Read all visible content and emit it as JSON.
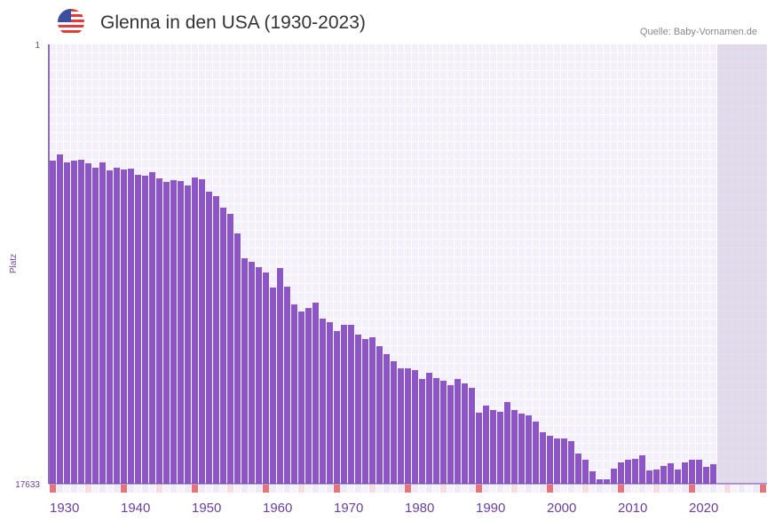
{
  "header": {
    "title": "Glenna in den USA (1930-2023)",
    "source": "Quelle: Baby-Vornamen.de",
    "flag_icon": "us-flag-icon"
  },
  "chart_data": {
    "type": "bar",
    "title": "Glenna in den USA (1930-2023)",
    "xlabel": "",
    "ylabel": "Platz",
    "ylim": [
      1,
      17633
    ],
    "y_inverted": true,
    "y_tick_labels": [
      "1",
      "17633"
    ],
    "x_range": [
      1930,
      2030
    ],
    "x_tick_labels": [
      "1930",
      "1940",
      "1950",
      "1960",
      "1970",
      "1980",
      "1990",
      "2000",
      "2010",
      "2020"
    ],
    "future_shaded_from": 2024,
    "bar_color": "#8e55c7",
    "categories": [
      1930,
      1931,
      1932,
      1933,
      1934,
      1935,
      1936,
      1937,
      1938,
      1939,
      1940,
      1941,
      1942,
      1943,
      1944,
      1945,
      1946,
      1947,
      1948,
      1949,
      1950,
      1951,
      1952,
      1953,
      1954,
      1955,
      1956,
      1957,
      1958,
      1959,
      1960,
      1961,
      1962,
      1963,
      1964,
      1965,
      1966,
      1967,
      1968,
      1969,
      1970,
      1971,
      1972,
      1973,
      1974,
      1975,
      1976,
      1977,
      1978,
      1979,
      1980,
      1981,
      1982,
      1983,
      1984,
      1985,
      1986,
      1987,
      1988,
      1989,
      1990,
      1991,
      1992,
      1993,
      1994,
      1995,
      1996,
      1997,
      1998,
      1999,
      2000,
      2001,
      2002,
      2003,
      2004,
      2005,
      2006,
      2007,
      2008,
      2009,
      2010,
      2011,
      2012,
      2013,
      2014,
      2015,
      2016,
      2017,
      2018,
      2019,
      2020,
      2021,
      2022,
      2023
    ],
    "values": [
      4666,
      4417,
      4737,
      4666,
      4631,
      4773,
      4951,
      4737,
      5058,
      4951,
      5022,
      4987,
      5236,
      5272,
      5129,
      5379,
      5521,
      5450,
      5486,
      5664,
      5343,
      5414,
      5913,
      6091,
      6554,
      6804,
      7587,
      8585,
      8727,
      8941,
      9155,
      9760,
      8977,
      9725,
      10437,
      10722,
      10580,
      10366,
      11007,
      11150,
      11506,
      11256,
      11256,
      11648,
      11826,
      11755,
      12111,
      12432,
      12717,
      13002,
      13002,
      13073,
      13429,
      13180,
      13393,
      13500,
      13678,
      13429,
      13607,
      13785,
      14782,
      14497,
      14675,
      14746,
      14354,
      14675,
      14818,
      14889,
      15139,
      15567,
      15709,
      15816,
      15816,
      15923,
      16422,
      16671,
      17134,
      17455,
      17455,
      17027,
      16778,
      16671,
      16636,
      16494,
      17098,
      17063,
      16920,
      16813,
      17063,
      16778,
      16671,
      16671,
      16956,
      16849
    ]
  }
}
